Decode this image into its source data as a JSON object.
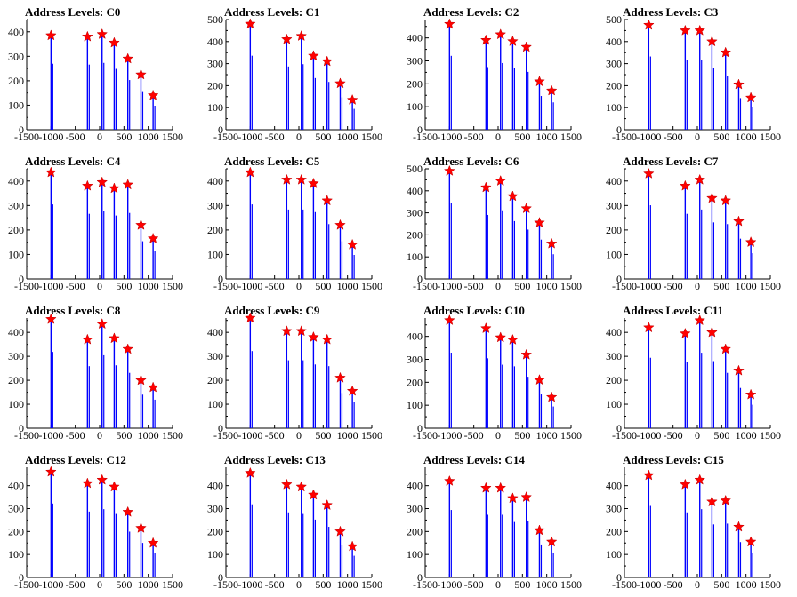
{
  "chart_data": [
    {
      "type": "bar",
      "title": "Address Levels: C0",
      "xlim": [
        -1500,
        1500
      ],
      "ylim": [
        0,
        450
      ],
      "xticks": [
        -1500,
        -1000,
        -500,
        0,
        500,
        1000,
        1500
      ],
      "yticks": [
        0,
        100,
        200,
        300,
        400
      ],
      "x": [
        -1000,
        -250,
        50,
        300,
        580,
        850,
        1100
      ],
      "values": [
        385,
        380,
        390,
        355,
        290,
        225,
        140
      ],
      "series": [
        {
          "values": [
            385,
            380,
            390,
            355,
            290,
            225,
            140
          ]
        }
      ],
      "colors": {
        "bars": "#0000ff",
        "markers": "#ff0000"
      }
    },
    {
      "type": "bar",
      "title": "Address Levels: C1",
      "xlim": [
        -1500,
        1500
      ],
      "ylim": [
        0,
        500
      ],
      "xticks": [
        -1500,
        -1000,
        -500,
        0,
        500,
        1000,
        1500
      ],
      "yticks": [
        0,
        100,
        200,
        300,
        400,
        500
      ],
      "x": [
        -1000,
        -250,
        50,
        300,
        580,
        850,
        1100
      ],
      "values": [
        480,
        410,
        425,
        335,
        310,
        210,
        135
      ],
      "series": [
        {
          "values": [
            480,
            410,
            425,
            335,
            310,
            210,
            135
          ]
        }
      ],
      "colors": {
        "bars": "#0000ff",
        "markers": "#ff0000"
      }
    },
    {
      "type": "bar",
      "title": "Address Levels: C2",
      "xlim": [
        -1500,
        1500
      ],
      "ylim": [
        0,
        480
      ],
      "xticks": [
        -1500,
        -1000,
        -500,
        0,
        500,
        1000,
        1500
      ],
      "yticks": [
        0,
        100,
        200,
        300,
        400
      ],
      "x": [
        -1000,
        -250,
        50,
        300,
        580,
        850,
        1100
      ],
      "values": [
        460,
        390,
        415,
        385,
        360,
        210,
        170
      ],
      "series": [
        {
          "values": [
            460,
            390,
            415,
            385,
            360,
            210,
            170
          ]
        }
      ],
      "colors": {
        "bars": "#0000ff",
        "markers": "#ff0000"
      }
    },
    {
      "type": "bar",
      "title": "Address Levels: C3",
      "xlim": [
        -1500,
        1500
      ],
      "ylim": [
        0,
        500
      ],
      "xticks": [
        -1500,
        -1000,
        -500,
        0,
        500,
        1000,
        1500
      ],
      "yticks": [
        0,
        100,
        200,
        300,
        400,
        500
      ],
      "x": [
        -1000,
        -250,
        50,
        300,
        580,
        850,
        1100
      ],
      "values": [
        475,
        450,
        450,
        400,
        350,
        205,
        145
      ],
      "series": [
        {
          "values": [
            475,
            450,
            450,
            400,
            350,
            205,
            145
          ]
        }
      ],
      "colors": {
        "bars": "#0000ff",
        "markers": "#ff0000"
      }
    },
    {
      "type": "bar",
      "title": "Address Levels: C4",
      "xlim": [
        -1500,
        1500
      ],
      "ylim": [
        0,
        450
      ],
      "xticks": [
        -1500,
        -1000,
        -500,
        0,
        500,
        1000,
        1500
      ],
      "yticks": [
        0,
        100,
        200,
        300,
        400
      ],
      "x": [
        -1000,
        -250,
        50,
        300,
        580,
        850,
        1100
      ],
      "values": [
        435,
        380,
        395,
        370,
        385,
        220,
        165
      ],
      "series": [
        {
          "values": [
            435,
            380,
            395,
            370,
            385,
            220,
            165
          ]
        }
      ],
      "colors": {
        "bars": "#0000ff",
        "markers": "#ff0000"
      }
    },
    {
      "type": "bar",
      "title": "Address Levels: C5",
      "xlim": [
        -1500,
        1500
      ],
      "ylim": [
        0,
        450
      ],
      "xticks": [
        -1500,
        -1000,
        -500,
        0,
        500,
        1000,
        1500
      ],
      "yticks": [
        0,
        100,
        200,
        300,
        400
      ],
      "x": [
        -1000,
        -250,
        50,
        300,
        580,
        850,
        1100
      ],
      "values": [
        435,
        405,
        405,
        390,
        320,
        220,
        140
      ],
      "series": [
        {
          "values": [
            435,
            405,
            405,
            390,
            320,
            220,
            140
          ]
        }
      ],
      "colors": {
        "bars": "#0000ff",
        "markers": "#ff0000"
      }
    },
    {
      "type": "bar",
      "title": "Address Levels: C6",
      "xlim": [
        -1500,
        1500
      ],
      "ylim": [
        0,
        500
      ],
      "xticks": [
        -1500,
        -1000,
        -500,
        0,
        500,
        1000,
        1500
      ],
      "yticks": [
        0,
        100,
        200,
        300,
        400,
        500
      ],
      "x": [
        -1000,
        -250,
        50,
        300,
        580,
        850,
        1100
      ],
      "values": [
        490,
        415,
        445,
        375,
        320,
        255,
        160
      ],
      "series": [
        {
          "values": [
            490,
            415,
            445,
            375,
            320,
            255,
            160
          ]
        }
      ],
      "colors": {
        "bars": "#0000ff",
        "markers": "#ff0000"
      }
    },
    {
      "type": "bar",
      "title": "Address Levels: C7",
      "xlim": [
        -1500,
        1500
      ],
      "ylim": [
        0,
        450
      ],
      "xticks": [
        -1500,
        -1000,
        -500,
        0,
        500,
        1000,
        1500
      ],
      "yticks": [
        0,
        100,
        200,
        300,
        400
      ],
      "x": [
        -1000,
        -250,
        50,
        300,
        580,
        850,
        1100
      ],
      "values": [
        430,
        380,
        405,
        330,
        320,
        235,
        150
      ],
      "series": [
        {
          "values": [
            430,
            380,
            405,
            330,
            320,
            235,
            150
          ]
        }
      ],
      "colors": {
        "bars": "#0000ff",
        "markers": "#ff0000"
      }
    },
    {
      "type": "bar",
      "title": "Address Levels: C8",
      "xlim": [
        -1500,
        1500
      ],
      "ylim": [
        0,
        460
      ],
      "xticks": [
        -1500,
        -1000,
        -500,
        0,
        500,
        1000,
        1500
      ],
      "yticks": [
        0,
        100,
        200,
        300,
        400
      ],
      "x": [
        -1000,
        -250,
        50,
        300,
        580,
        850,
        1100
      ],
      "values": [
        455,
        370,
        435,
        375,
        330,
        200,
        170
      ],
      "series": [
        {
          "values": [
            455,
            370,
            435,
            375,
            330,
            200,
            170
          ]
        }
      ],
      "colors": {
        "bars": "#0000ff",
        "markers": "#ff0000"
      }
    },
    {
      "type": "bar",
      "title": "Address Levels: C9",
      "xlim": [
        -1500,
        1500
      ],
      "ylim": [
        0,
        460
      ],
      "xticks": [
        -1500,
        -1000,
        -500,
        0,
        500,
        1000,
        1500
      ],
      "yticks": [
        0,
        100,
        200,
        300,
        400
      ],
      "x": [
        -1000,
        -250,
        50,
        300,
        580,
        850,
        1100
      ],
      "values": [
        460,
        405,
        405,
        380,
        370,
        210,
        155
      ],
      "series": [
        {
          "values": [
            460,
            405,
            405,
            380,
            370,
            210,
            155
          ]
        }
      ],
      "colors": {
        "bars": "#0000ff",
        "markers": "#ff0000"
      }
    },
    {
      "type": "bar",
      "title": "Address Levels: C10",
      "xlim": [
        -1500,
        1500
      ],
      "ylim": [
        0,
        480
      ],
      "xticks": [
        -1500,
        -1000,
        -500,
        0,
        500,
        1000,
        1500
      ],
      "yticks": [
        0,
        100,
        200,
        300,
        400
      ],
      "x": [
        -1000,
        -250,
        50,
        300,
        580,
        850,
        1100
      ],
      "values": [
        470,
        435,
        395,
        385,
        320,
        210,
        135
      ],
      "series": [
        {
          "values": [
            470,
            435,
            395,
            385,
            320,
            210,
            135
          ]
        }
      ],
      "colors": {
        "bars": "#0000ff",
        "markers": "#ff0000"
      }
    },
    {
      "type": "bar",
      "title": "Address Levels: C11",
      "xlim": [
        -1500,
        1500
      ],
      "ylim": [
        0,
        460
      ],
      "xticks": [
        -1500,
        -1000,
        -500,
        0,
        500,
        1000,
        1500
      ],
      "yticks": [
        0,
        100,
        200,
        300,
        400
      ],
      "x": [
        -1000,
        -250,
        50,
        300,
        580,
        850,
        1100
      ],
      "values": [
        420,
        395,
        450,
        400,
        330,
        240,
        140
      ],
      "series": [
        {
          "values": [
            420,
            395,
            450,
            400,
            330,
            240,
            140
          ]
        }
      ],
      "colors": {
        "bars": "#0000ff",
        "markers": "#ff0000"
      }
    },
    {
      "type": "bar",
      "title": "Address Levels: C12",
      "xlim": [
        -1500,
        1500
      ],
      "ylim": [
        0,
        480
      ],
      "xticks": [
        -1500,
        -1000,
        -500,
        0,
        500,
        1000,
        1500
      ],
      "yticks": [
        0,
        100,
        200,
        300,
        400
      ],
      "x": [
        -1000,
        -250,
        50,
        300,
        580,
        850,
        1100
      ],
      "values": [
        460,
        410,
        425,
        395,
        285,
        215,
        150
      ],
      "series": [
        {
          "values": [
            460,
            410,
            425,
            395,
            285,
            215,
            150
          ]
        }
      ],
      "colors": {
        "bars": "#0000ff",
        "markers": "#ff0000"
      }
    },
    {
      "type": "bar",
      "title": "Address Levels: C13",
      "xlim": [
        -1500,
        1500
      ],
      "ylim": [
        0,
        480
      ],
      "xticks": [
        -1500,
        -1000,
        -500,
        0,
        500,
        1000,
        1500
      ],
      "yticks": [
        0,
        100,
        200,
        300,
        400
      ],
      "x": [
        -1000,
        -250,
        50,
        300,
        580,
        850,
        1100
      ],
      "values": [
        455,
        405,
        395,
        360,
        315,
        200,
        135
      ],
      "series": [
        {
          "values": [
            455,
            405,
            395,
            360,
            315,
            200,
            135
          ]
        }
      ],
      "colors": {
        "bars": "#0000ff",
        "markers": "#ff0000"
      }
    },
    {
      "type": "bar",
      "title": "Address Levels: C14",
      "xlim": [
        -1500,
        1500
      ],
      "ylim": [
        0,
        480
      ],
      "xticks": [
        -1500,
        -1000,
        -500,
        0,
        500,
        1000,
        1500
      ],
      "yticks": [
        0,
        100,
        200,
        300,
        400
      ],
      "x": [
        -1000,
        -250,
        50,
        300,
        580,
        850,
        1100
      ],
      "values": [
        420,
        390,
        390,
        345,
        350,
        205,
        155
      ],
      "series": [
        {
          "values": [
            420,
            390,
            390,
            345,
            350,
            205,
            155
          ]
        }
      ],
      "colors": {
        "bars": "#0000ff",
        "markers": "#ff0000"
      }
    },
    {
      "type": "bar",
      "title": "Address Levels: C15",
      "xlim": [
        -1500,
        1500
      ],
      "ylim": [
        0,
        480
      ],
      "xticks": [
        -1500,
        -1000,
        -500,
        0,
        500,
        1000,
        1500
      ],
      "yticks": [
        0,
        100,
        200,
        300,
        400
      ],
      "x": [
        -1000,
        -250,
        50,
        300,
        580,
        850,
        1100
      ],
      "values": [
        445,
        405,
        425,
        330,
        335,
        220,
        155
      ],
      "series": [
        {
          "values": [
            445,
            405,
            425,
            330,
            335,
            220,
            155
          ]
        }
      ],
      "colors": {
        "bars": "#0000ff",
        "markers": "#ff0000"
      }
    }
  ]
}
